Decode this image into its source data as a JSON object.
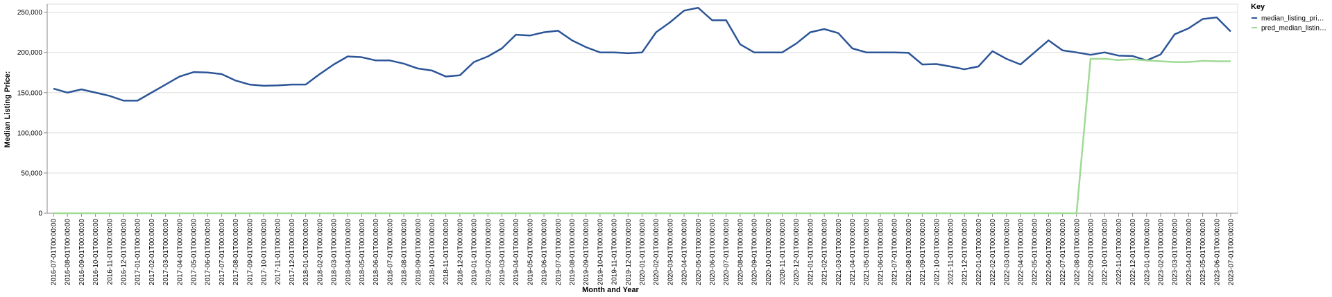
{
  "chart_data": {
    "type": "line",
    "x_label": "Month and Year",
    "y_label": "Median Listing Price:",
    "legend_title": "Key",
    "legend_position": "right",
    "grid": true,
    "x": [
      "2016-07-01T00:00:00",
      "2016-08-01T00:00:00",
      "2016-09-01T00:00:00",
      "2016-10-01T00:00:00",
      "2016-11-01T00:00:00",
      "2016-12-01T00:00:00",
      "2017-01-01T00:00:00",
      "2017-02-01T00:00:00",
      "2017-03-01T00:00:00",
      "2017-04-01T00:00:00",
      "2017-05-01T00:00:00",
      "2017-06-01T00:00:00",
      "2017-07-01T00:00:00",
      "2017-08-01T00:00:00",
      "2017-09-01T00:00:00",
      "2017-10-01T00:00:00",
      "2017-11-01T00:00:00",
      "2017-12-01T00:00:00",
      "2018-01-01T00:00:00",
      "2018-02-01T00:00:00",
      "2018-03-01T00:00:00",
      "2018-04-01T00:00:00",
      "2018-05-01T00:00:00",
      "2018-06-01T00:00:00",
      "2018-07-01T00:00:00",
      "2018-08-01T00:00:00",
      "2018-09-01T00:00:00",
      "2018-10-01T00:00:00",
      "2018-11-01T00:00:00",
      "2018-12-01T00:00:00",
      "2019-01-01T00:00:00",
      "2019-02-01T00:00:00",
      "2019-03-01T00:00:00",
      "2019-04-01T00:00:00",
      "2019-05-01T00:00:00",
      "2019-06-01T00:00:00",
      "2019-07-01T00:00:00",
      "2019-08-01T00:00:00",
      "2019-09-01T00:00:00",
      "2019-10-01T00:00:00",
      "2019-11-01T00:00:00",
      "2019-12-01T00:00:00",
      "2020-01-01T00:00:00",
      "2020-02-01T00:00:00",
      "2020-03-01T00:00:00",
      "2020-04-01T00:00:00",
      "2020-05-01T00:00:00",
      "2020-06-01T00:00:00",
      "2020-07-01T00:00:00",
      "2020-08-01T00:00:00",
      "2020-09-01T00:00:00",
      "2020-10-01T00:00:00",
      "2020-11-01T00:00:00",
      "2020-12-01T00:00:00",
      "2021-01-01T00:00:00",
      "2021-02-01T00:00:00",
      "2021-03-01T00:00:00",
      "2021-04-01T00:00:00",
      "2021-05-01T00:00:00",
      "2021-06-01T00:00:00",
      "2021-07-01T00:00:00",
      "2021-08-01T00:00:00",
      "2021-09-01T00:00:00",
      "2021-10-01T00:00:00",
      "2021-11-01T00:00:00",
      "2021-12-01T00:00:00",
      "2022-01-01T00:00:00",
      "2022-02-01T00:00:00",
      "2022-03-01T00:00:00",
      "2022-04-01T00:00:00",
      "2022-05-01T00:00:00",
      "2022-06-01T00:00:00",
      "2022-07-01T00:00:00",
      "2022-08-01T00:00:00",
      "2022-09-01T00:00:00",
      "2022-10-01T00:00:00",
      "2022-11-01T00:00:00",
      "2022-12-01T00:00:00",
      "2023-01-01T00:00:00",
      "2023-02-01T00:00:00",
      "2023-03-01T00:00:00",
      "2023-04-01T00:00:00",
      "2023-05-01T00:00:00",
      "2023-06-01T00:00:00",
      "2023-07-01T00:00:00"
    ],
    "series": [
      {
        "name": "median_listing_pri…",
        "color": "#2c5597",
        "values": [
          155000,
          150000,
          154000,
          150000,
          146000,
          140000,
          140000,
          150000,
          160000,
          170000,
          175500,
          175000,
          173000,
          165000,
          160000,
          158500,
          159000,
          160000,
          160000,
          173000,
          185000,
          195000,
          194000,
          190000,
          190000,
          186000,
          180000,
          177500,
          170000,
          171500,
          188000,
          195000,
          205000,
          222000,
          221000,
          225000,
          227000,
          215000,
          206500,
          200000,
          200000,
          199000,
          200000,
          225000,
          237500,
          252000,
          255500,
          240000,
          240000,
          210000,
          200000,
          200000,
          200000,
          211000,
          225000,
          229000,
          224000,
          205000,
          200000,
          200000,
          200000,
          199500,
          185000,
          185500,
          182500,
          179000,
          182500,
          201500,
          192000,
          185000,
          200000,
          215000,
          202500,
          200000,
          197000,
          200000,
          196000,
          195500,
          190000,
          197500,
          222500,
          230000,
          241500,
          243500,
          226000
        ]
      },
      {
        "name": "pred_median_listin…",
        "color": "#9fdb95",
        "values": [
          0,
          0,
          0,
          0,
          0,
          0,
          0,
          0,
          0,
          0,
          0,
          0,
          0,
          0,
          0,
          0,
          0,
          0,
          0,
          0,
          0,
          0,
          0,
          0,
          0,
          0,
          0,
          0,
          0,
          0,
          0,
          0,
          0,
          0,
          0,
          0,
          0,
          0,
          0,
          0,
          0,
          0,
          0,
          0,
          0,
          0,
          0,
          0,
          0,
          0,
          0,
          0,
          0,
          0,
          0,
          0,
          0,
          0,
          0,
          0,
          0,
          0,
          0,
          0,
          0,
          0,
          0,
          0,
          0,
          0,
          0,
          0,
          0,
          0,
          192000,
          192000,
          190500,
          191500,
          190000,
          189000,
          188000,
          188000,
          189500,
          189000,
          189000
        ]
      }
    ],
    "ylim": [
      0,
      260000
    ],
    "yticks": [
      0,
      {
        "value": 50000,
        "label": "50,000"
      },
      {
        "value": 100000,
        "label": "100,000"
      },
      {
        "value": 150000,
        "label": "150,000"
      },
      {
        "value": 200000,
        "label": "200,000"
      },
      {
        "value": 250000,
        "label": "250,000"
      }
    ]
  }
}
